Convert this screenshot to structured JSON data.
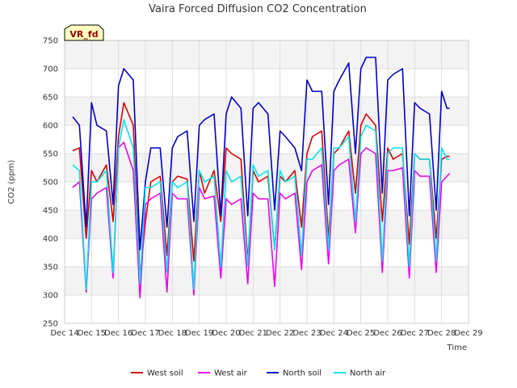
{
  "chart_data": {
    "type": "line",
    "title": "Vaira Forced Diffusion CO2 Concentration",
    "xlabel": "Time",
    "ylabel": "CO2 (ppm)",
    "badge": "VR_fd",
    "ylim": [
      250,
      750
    ],
    "yticks": [
      250,
      300,
      350,
      400,
      450,
      500,
      550,
      600,
      650,
      700,
      750
    ],
    "xlim": [
      0,
      15
    ],
    "xticks": [
      0,
      1,
      2,
      3,
      4,
      5,
      6,
      7,
      8,
      9,
      10,
      11,
      12,
      13,
      14,
      15
    ],
    "xtick_labels": [
      "Dec 14",
      "Dec 15",
      "Dec 16",
      "Dec 17",
      "Dec 18",
      "Dec 19",
      "Dec 20",
      "Dec 21",
      "Dec 22",
      "Dec 23",
      "Dec 24",
      "Dec 25",
      "Dec 26",
      "Dec 27",
      "Dec 28",
      "Dec 29"
    ],
    "grid": true,
    "legend_position": "bottom",
    "x_points": [
      0.3,
      0.55,
      0.8,
      1.0,
      1.2,
      1.55,
      1.8,
      2.0,
      2.2,
      2.55,
      2.8,
      3.0,
      3.2,
      3.55,
      3.8,
      4.0,
      4.2,
      4.55,
      4.8,
      5.0,
      5.2,
      5.55,
      5.8,
      6.0,
      6.2,
      6.55,
      6.8,
      7.0,
      7.2,
      7.55,
      7.8,
      8.0,
      8.2,
      8.55,
      8.8,
      9.0,
      9.2,
      9.55,
      9.8,
      10.0,
      10.2,
      10.55,
      10.8,
      11.0,
      11.2,
      11.55,
      11.8,
      12.0,
      12.2,
      12.55,
      12.8,
      13.0,
      13.2,
      13.55,
      13.8,
      14.0,
      14.2,
      14.3
    ],
    "series": [
      {
        "name": "West soil",
        "color": "#dd0000",
        "values": [
          555,
          560,
          400,
          520,
          500,
          530,
          430,
          580,
          640,
          600,
          330,
          430,
          500,
          510,
          370,
          500,
          510,
          505,
          360,
          520,
          480,
          520,
          430,
          560,
          550,
          540,
          360,
          520,
          500,
          510,
          380,
          510,
          500,
          520,
          420,
          550,
          580,
          590,
          400,
          550,
          560,
          590,
          480,
          600,
          620,
          600,
          430,
          560,
          540,
          550,
          390,
          550,
          540,
          540,
          400,
          540,
          545,
          545
        ]
      },
      {
        "name": "West air",
        "color": "#ee00ee",
        "values": [
          490,
          500,
          305,
          470,
          480,
          490,
          330,
          560,
          570,
          520,
          295,
          460,
          470,
          480,
          305,
          480,
          470,
          470,
          300,
          490,
          470,
          475,
          330,
          470,
          460,
          470,
          320,
          480,
          470,
          470,
          315,
          480,
          470,
          480,
          345,
          500,
          520,
          530,
          355,
          520,
          530,
          540,
          410,
          550,
          560,
          550,
          340,
          520,
          520,
          525,
          330,
          520,
          510,
          510,
          340,
          500,
          510,
          515
        ]
      },
      {
        "name": "North soil",
        "color": "#0000cc",
        "values": [
          615,
          600,
          420,
          640,
          600,
          590,
          460,
          670,
          700,
          680,
          380,
          500,
          560,
          560,
          420,
          560,
          580,
          590,
          430,
          600,
          610,
          620,
          440,
          620,
          650,
          630,
          440,
          630,
          640,
          620,
          450,
          590,
          580,
          560,
          520,
          680,
          660,
          660,
          460,
          660,
          680,
          710,
          550,
          700,
          720,
          720,
          480,
          680,
          690,
          700,
          440,
          640,
          630,
          620,
          450,
          660,
          630,
          630
        ]
      },
      {
        "name": "North air",
        "color": "#00e5ee",
        "values": [
          530,
          520,
          310,
          500,
          500,
          520,
          340,
          560,
          610,
          560,
          320,
          490,
          490,
          500,
          340,
          500,
          490,
          500,
          310,
          520,
          500,
          510,
          350,
          520,
          500,
          510,
          350,
          530,
          510,
          520,
          380,
          520,
          500,
          510,
          370,
          540,
          540,
          560,
          380,
          560,
          560,
          580,
          430,
          580,
          600,
          590,
          360,
          550,
          560,
          560,
          350,
          550,
          540,
          540,
          360,
          560,
          540,
          540
        ]
      }
    ]
  }
}
